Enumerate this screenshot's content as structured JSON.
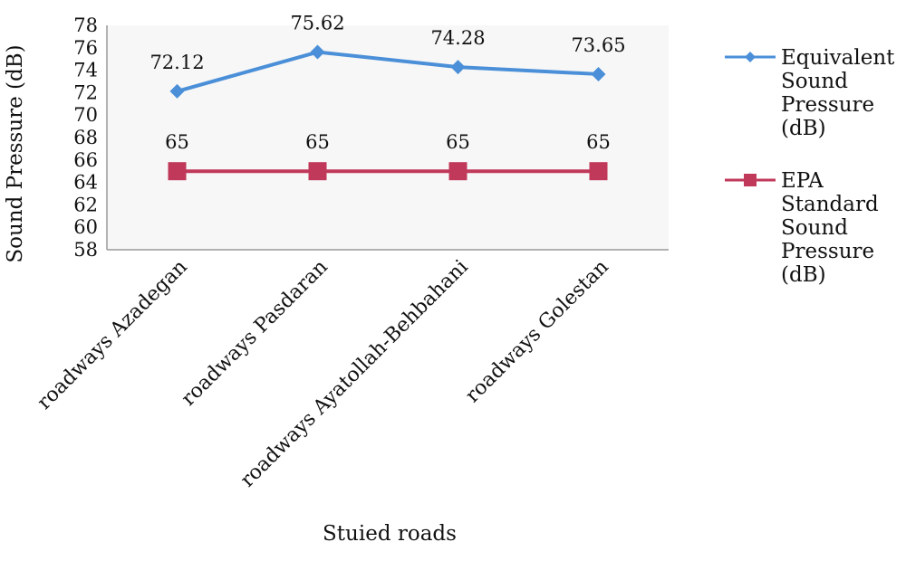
{
  "chart_data": {
    "type": "line",
    "xlabel": "Stuied roads",
    "ylabel": "Sound Pressure (dB)",
    "ylim": [
      58,
      78
    ],
    "y_ticks": [
      58,
      60,
      62,
      64,
      66,
      68,
      70,
      72,
      74,
      76,
      78
    ],
    "categories": [
      "roadways Azadegan",
      "roadways Pasdaran",
      "roadways Ayatollah-Behbahani",
      "roadways Golestan"
    ],
    "grid": false,
    "legend_position": "right",
    "series": [
      {
        "name": "Equivalent Sound Pressure (dB)",
        "legend_lines": [
          "Equivalent",
          "Sound",
          "Pressure",
          "(dB)"
        ],
        "values": [
          72.12,
          75.62,
          74.28,
          73.65
        ],
        "data_labels": [
          "72.12",
          "75.62",
          "74.28",
          "73.65"
        ],
        "color": "#4a8fd8",
        "marker": "diamond"
      },
      {
        "name": "EPA Standard Sound Pressure (dB)",
        "legend_lines": [
          "EPA",
          "Standard",
          "Sound",
          "Pressure",
          "(dB)"
        ],
        "values": [
          65,
          65,
          65,
          65
        ],
        "data_labels": [
          "65",
          "65",
          "65",
          "65"
        ],
        "color": "#c0395a",
        "marker": "square"
      }
    ]
  }
}
